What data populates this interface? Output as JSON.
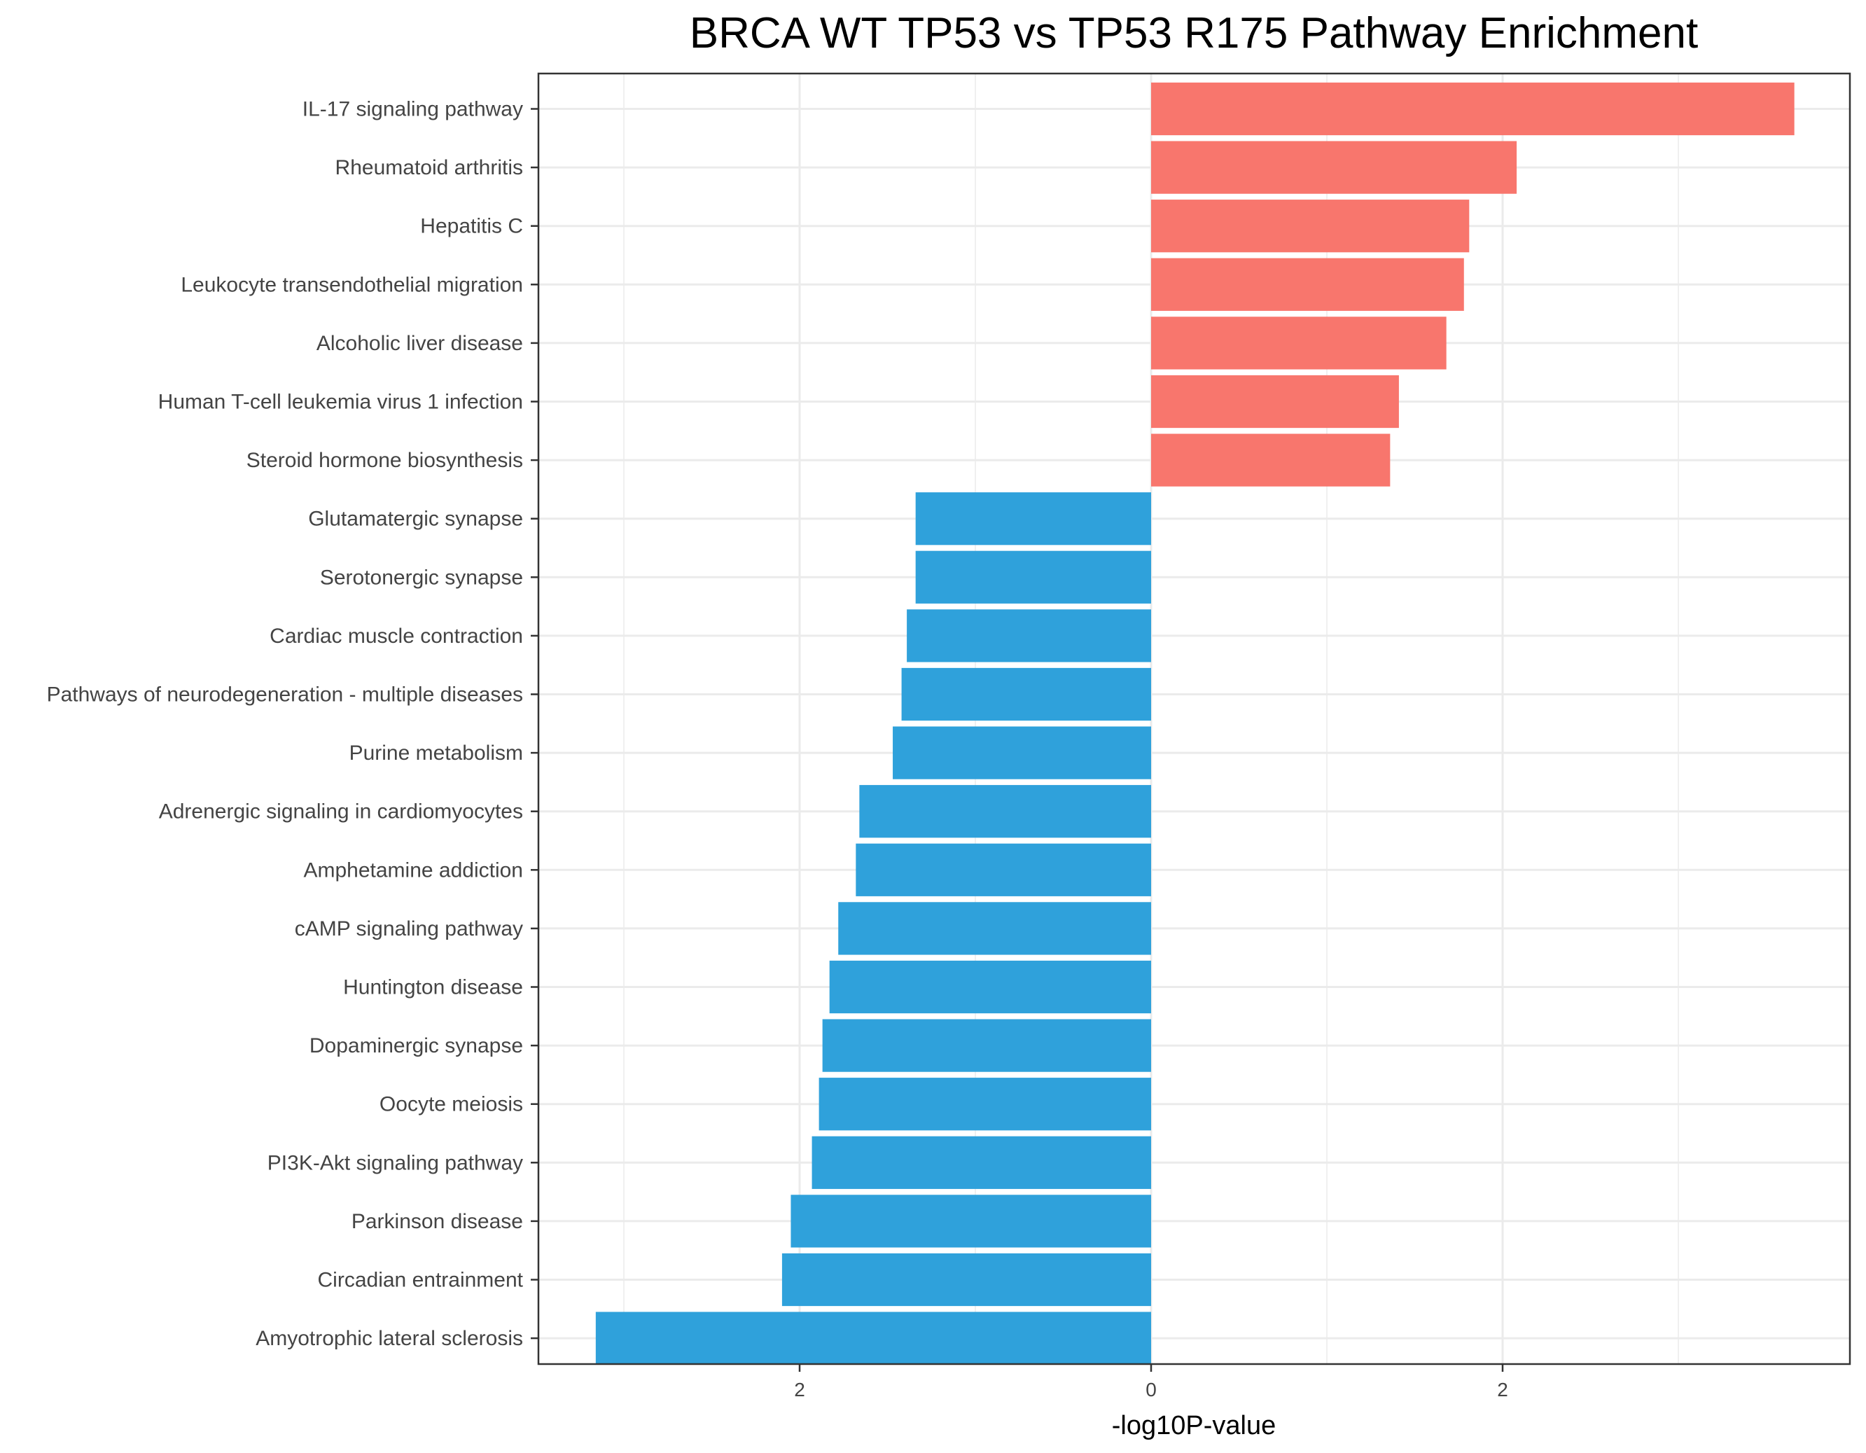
{
  "chart_data": {
    "type": "bar",
    "orientation": "horizontal",
    "title": "BRCA WT TP53 vs TP53 R175 Pathway Enrichment",
    "xlabel": "-log10P-value",
    "ylabel": "",
    "x_axis_ticks": [
      -2,
      0,
      2
    ],
    "x_axis_tick_labels": [
      "2",
      "0",
      "2"
    ],
    "xlim": [
      -3.5,
      4.0
    ],
    "grid": true,
    "legend": "none",
    "colors": {
      "up": "#F8766D",
      "down": "#2FA1DB",
      "grid": "#EBEBEB",
      "axis": "#333333"
    },
    "categories": [
      "IL-17 signaling pathway",
      "Rheumatoid arthritis",
      "Hepatitis C",
      "Leukocyte transendothelial migration",
      "Alcoholic liver disease",
      "Human T-cell leukemia virus 1 infection",
      "Steroid hormone biosynthesis",
      "Glutamatergic synapse",
      "Serotonergic synapse",
      "Cardiac muscle contraction",
      "Pathways of neurodegeneration - multiple diseases",
      "Purine metabolism",
      "Adrenergic signaling in cardiomyocytes",
      "Amphetamine addiction",
      "cAMP signaling pathway",
      "Huntington disease",
      "Dopaminergic synapse",
      "Oocyte meiosis",
      "PI3K-Akt signaling pathway",
      "Parkinson disease",
      "Circadian entrainment",
      "Amyotrophic lateral sclerosis"
    ],
    "values": [
      3.66,
      2.08,
      1.81,
      1.78,
      1.68,
      1.41,
      1.36,
      -1.34,
      -1.34,
      -1.39,
      -1.42,
      -1.47,
      -1.66,
      -1.68,
      -1.78,
      -1.83,
      -1.87,
      -1.89,
      -1.93,
      -2.05,
      -2.1,
      -3.16
    ]
  }
}
